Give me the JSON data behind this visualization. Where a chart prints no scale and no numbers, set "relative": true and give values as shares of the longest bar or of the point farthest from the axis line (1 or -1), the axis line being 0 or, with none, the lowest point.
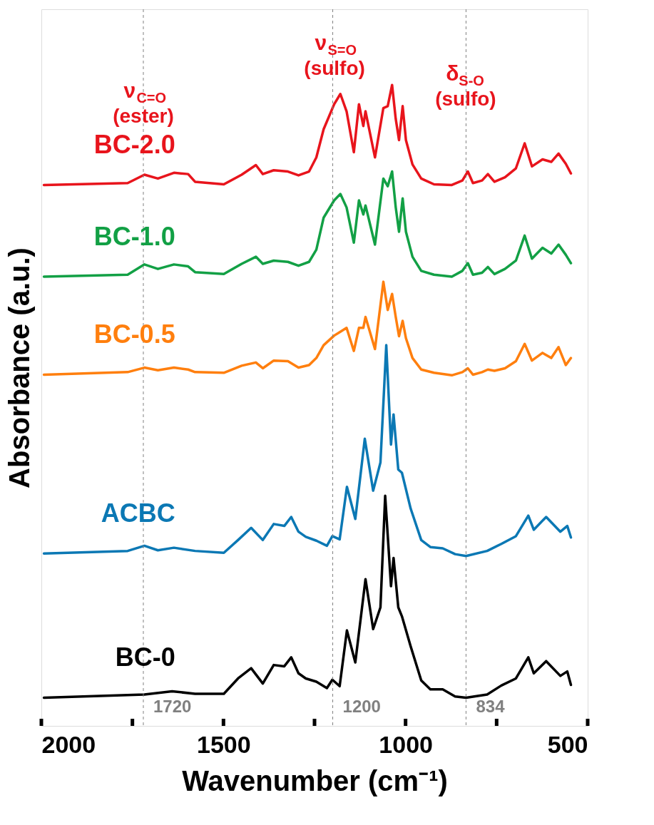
{
  "chart_data": {
    "type": "line",
    "relative": true,
    "xlabel": "Wavenumber (cm⁻¹)",
    "ylabel": "Absorbance (a.u.)",
    "xlim": [
      2000,
      500
    ],
    "xticks": [
      2000,
      {
        "value": 1750,
        "label": null
      },
      1500,
      {
        "value": 1250,
        "label": null
      },
      1000,
      {
        "value": 750,
        "label": null
      },
      500
    ],
    "x": [
      1993,
      1763,
      1717,
      1680,
      1636,
      1597,
      1578,
      1499,
      1450,
      1411,
      1392,
      1362,
      1323,
      1294,
      1265,
      1245,
      1225,
      1196,
      1179,
      1162,
      1142,
      1128,
      1116,
      1110,
      1084,
      1061,
      1049,
      1037,
      1027,
      1018,
      1008,
      999,
      981,
      957,
      922,
      873,
      844,
      829,
      815,
      790,
      774,
      756,
      727,
      697,
      673,
      653,
      624,
      600,
      580,
      560,
      546
    ],
    "series": [
      {
        "name": "BC-2.0",
        "color": "#e8141c",
        "values": [
          0.844,
          0.847,
          0.86,
          0.854,
          0.863,
          0.861,
          0.849,
          0.845,
          0.86,
          0.875,
          0.861,
          0.867,
          0.865,
          0.859,
          0.865,
          0.887,
          0.931,
          0.97,
          0.986,
          0.959,
          0.895,
          0.97,
          0.936,
          0.959,
          0.887,
          0.964,
          0.967,
          1.0,
          0.947,
          0.914,
          0.967,
          0.914,
          0.876,
          0.854,
          0.845,
          0.844,
          0.851,
          0.865,
          0.847,
          0.851,
          0.861,
          0.849,
          0.856,
          0.87,
          0.909,
          0.873,
          0.884,
          0.88,
          0.893,
          0.877,
          0.862
        ]
      },
      {
        "name": "BC-1.0",
        "color": "#12a045",
        "values": [
          0.701,
          0.704,
          0.72,
          0.713,
          0.72,
          0.717,
          0.708,
          0.705,
          0.721,
          0.732,
          0.721,
          0.726,
          0.724,
          0.718,
          0.724,
          0.743,
          0.793,
          0.82,
          0.83,
          0.809,
          0.754,
          0.82,
          0.798,
          0.812,
          0.751,
          0.854,
          0.842,
          0.865,
          0.809,
          0.771,
          0.823,
          0.771,
          0.732,
          0.71,
          0.704,
          0.701,
          0.71,
          0.722,
          0.704,
          0.707,
          0.716,
          0.705,
          0.713,
          0.726,
          0.765,
          0.729,
          0.746,
          0.737,
          0.751,
          0.735,
          0.722
        ]
      },
      {
        "name": "BC-0.5",
        "color": "#ff7f0e",
        "values": [
          0.548,
          0.552,
          0.559,
          0.555,
          0.559,
          0.556,
          0.552,
          0.551,
          0.562,
          0.567,
          0.558,
          0.57,
          0.569,
          0.559,
          0.563,
          0.574,
          0.594,
          0.609,
          0.615,
          0.621,
          0.585,
          0.621,
          0.621,
          0.638,
          0.588,
          0.693,
          0.649,
          0.674,
          0.638,
          0.608,
          0.632,
          0.605,
          0.574,
          0.556,
          0.551,
          0.547,
          0.552,
          0.558,
          0.548,
          0.552,
          0.556,
          0.554,
          0.558,
          0.569,
          0.596,
          0.57,
          0.582,
          0.574,
          0.591,
          0.563,
          0.574
        ]
      },
      {
        "name": "ACBC",
        "color": "#0b78b4",
        "x": [
          1993,
          1763,
          1717,
          1680,
          1636,
          1578,
          1499,
          1460,
          1424,
          1392,
          1362,
          1333,
          1314,
          1294,
          1274,
          1245,
          1216,
          1201,
          1181,
          1161,
          1138,
          1112,
          1089,
          1069,
          1053,
          1040,
          1033,
          1020,
          1010,
          986,
          957,
          932,
          898,
          864,
          834,
          776,
          737,
          697,
          663,
          648,
          614,
          575,
          556,
          546
        ],
        "values": [
          0.269,
          0.273,
          0.281,
          0.274,
          0.278,
          0.273,
          0.27,
          0.29,
          0.309,
          0.29,
          0.315,
          0.312,
          0.326,
          0.303,
          0.295,
          0.289,
          0.281,
          0.296,
          0.291,
          0.373,
          0.323,
          0.448,
          0.367,
          0.411,
          0.594,
          0.439,
          0.486,
          0.4,
          0.395,
          0.339,
          0.29,
          0.279,
          0.277,
          0.268,
          0.265,
          0.273,
          0.284,
          0.296,
          0.328,
          0.306,
          0.326,
          0.303,
          0.312,
          0.294
        ]
      },
      {
        "name": "BC-0",
        "color": "#000000",
        "x": [
          1993,
          1763,
          1717,
          1641,
          1578,
          1499,
          1460,
          1424,
          1392,
          1362,
          1333,
          1314,
          1294,
          1274,
          1245,
          1216,
          1201,
          1181,
          1161,
          1138,
          1110,
          1089,
          1069,
          1056,
          1040,
          1033,
          1020,
          1010,
          986,
          957,
          932,
          898,
          864,
          834,
          776,
          737,
          697,
          663,
          648,
          614,
          575,
          556,
          546
        ],
        "values": [
          0.044,
          0.048,
          0.049,
          0.054,
          0.05,
          0.05,
          0.074,
          0.09,
          0.066,
          0.095,
          0.093,
          0.107,
          0.082,
          0.074,
          0.069,
          0.059,
          0.072,
          0.062,
          0.149,
          0.099,
          0.229,
          0.151,
          0.185,
          0.359,
          0.218,
          0.262,
          0.185,
          0.171,
          0.124,
          0.071,
          0.057,
          0.057,
          0.046,
          0.044,
          0.049,
          0.063,
          0.074,
          0.107,
          0.082,
          0.101,
          0.078,
          0.085,
          0.064
        ]
      }
    ],
    "ref_lines": [
      {
        "axis": "x",
        "value": 1720,
        "label": "1720",
        "color": "#808080",
        "line_style": "dashed"
      },
      {
        "axis": "x",
        "value": 1200,
        "label": "1200",
        "color": "#808080",
        "line_style": "dashed"
      },
      {
        "axis": "x",
        "value": 834,
        "label": "834",
        "color": "#808080",
        "line_style": "dashed"
      }
    ],
    "annotations": [
      {
        "text": "ν$_{C=O}$ (ester)",
        "x": 1720,
        "y": 0.97
      },
      {
        "text": "ν$_{S=O}$ (sulfo)",
        "x": 1195,
        "y": 1.045
      },
      {
        "text": "δ$_{S-O}$ (sulfo)",
        "x": 835,
        "y": 0.997
      }
    ]
  }
}
